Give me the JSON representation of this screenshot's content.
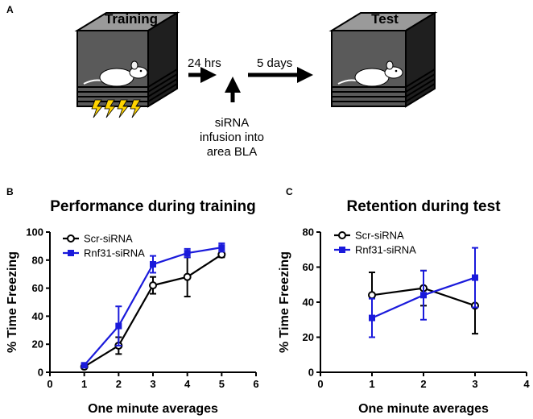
{
  "panel_a": {
    "letter": "A",
    "training_label": "Training",
    "test_label": "Test",
    "delay_1": "24 hrs",
    "delay_2": "5 days",
    "infusion_lines": [
      "siRNA",
      "infusion into",
      "area BLA"
    ],
    "icons": [
      "training-box-icon",
      "mouse-icon",
      "shock-icon",
      "test-box-icon",
      "arrow-icon"
    ]
  },
  "colors": {
    "scr": "#000000",
    "rnf": "#1a1adb"
  },
  "chart_data": [
    {
      "letter": "B",
      "type": "line",
      "title": "Performance during training",
      "xlabel": "One minute averages",
      "ylabel": "% Time Freezing",
      "xlim": [
        0,
        6
      ],
      "ylim": [
        0,
        100
      ],
      "xticks": [
        0,
        1,
        2,
        3,
        4,
        5,
        6
      ],
      "yticks": [
        0,
        20,
        40,
        60,
        80,
        100
      ],
      "legend_position": "top-left",
      "series": [
        {
          "name": "Scr-siRNA",
          "marker": "open-circle",
          "color": "#000000",
          "x": [
            1,
            2,
            3,
            4,
            5
          ],
          "y": [
            4,
            19,
            62,
            68,
            84
          ],
          "err": [
            1,
            6,
            6,
            14,
            2
          ]
        },
        {
          "name": "Rnf31-siRNA",
          "marker": "filled-square",
          "color": "#1a1adb",
          "x": [
            1,
            2,
            3,
            4,
            5
          ],
          "y": [
            5,
            33,
            77,
            85,
            89
          ],
          "err": [
            1,
            14,
            6,
            3,
            3
          ]
        }
      ]
    },
    {
      "letter": "C",
      "type": "line",
      "title": "Retention during test",
      "xlabel": "One minute averages",
      "ylabel": "% Time Freezing",
      "xlim": [
        0,
        4
      ],
      "ylim": [
        0,
        80
      ],
      "xticks": [
        0,
        1,
        2,
        3,
        4
      ],
      "yticks": [
        0,
        20,
        40,
        60,
        80
      ],
      "legend_position": "top-left",
      "series": [
        {
          "name": "Scr-siRNA",
          "marker": "open-circle",
          "color": "#000000",
          "x": [
            1,
            2,
            3
          ],
          "y": [
            44,
            48,
            38
          ],
          "err": [
            13,
            10,
            16
          ]
        },
        {
          "name": "Rnf31-siRNA",
          "marker": "filled-square",
          "color": "#1a1adb",
          "x": [
            1,
            2,
            3
          ],
          "y": [
            31,
            44,
            54
          ],
          "err": [
            11,
            14,
            17
          ]
        }
      ]
    }
  ]
}
